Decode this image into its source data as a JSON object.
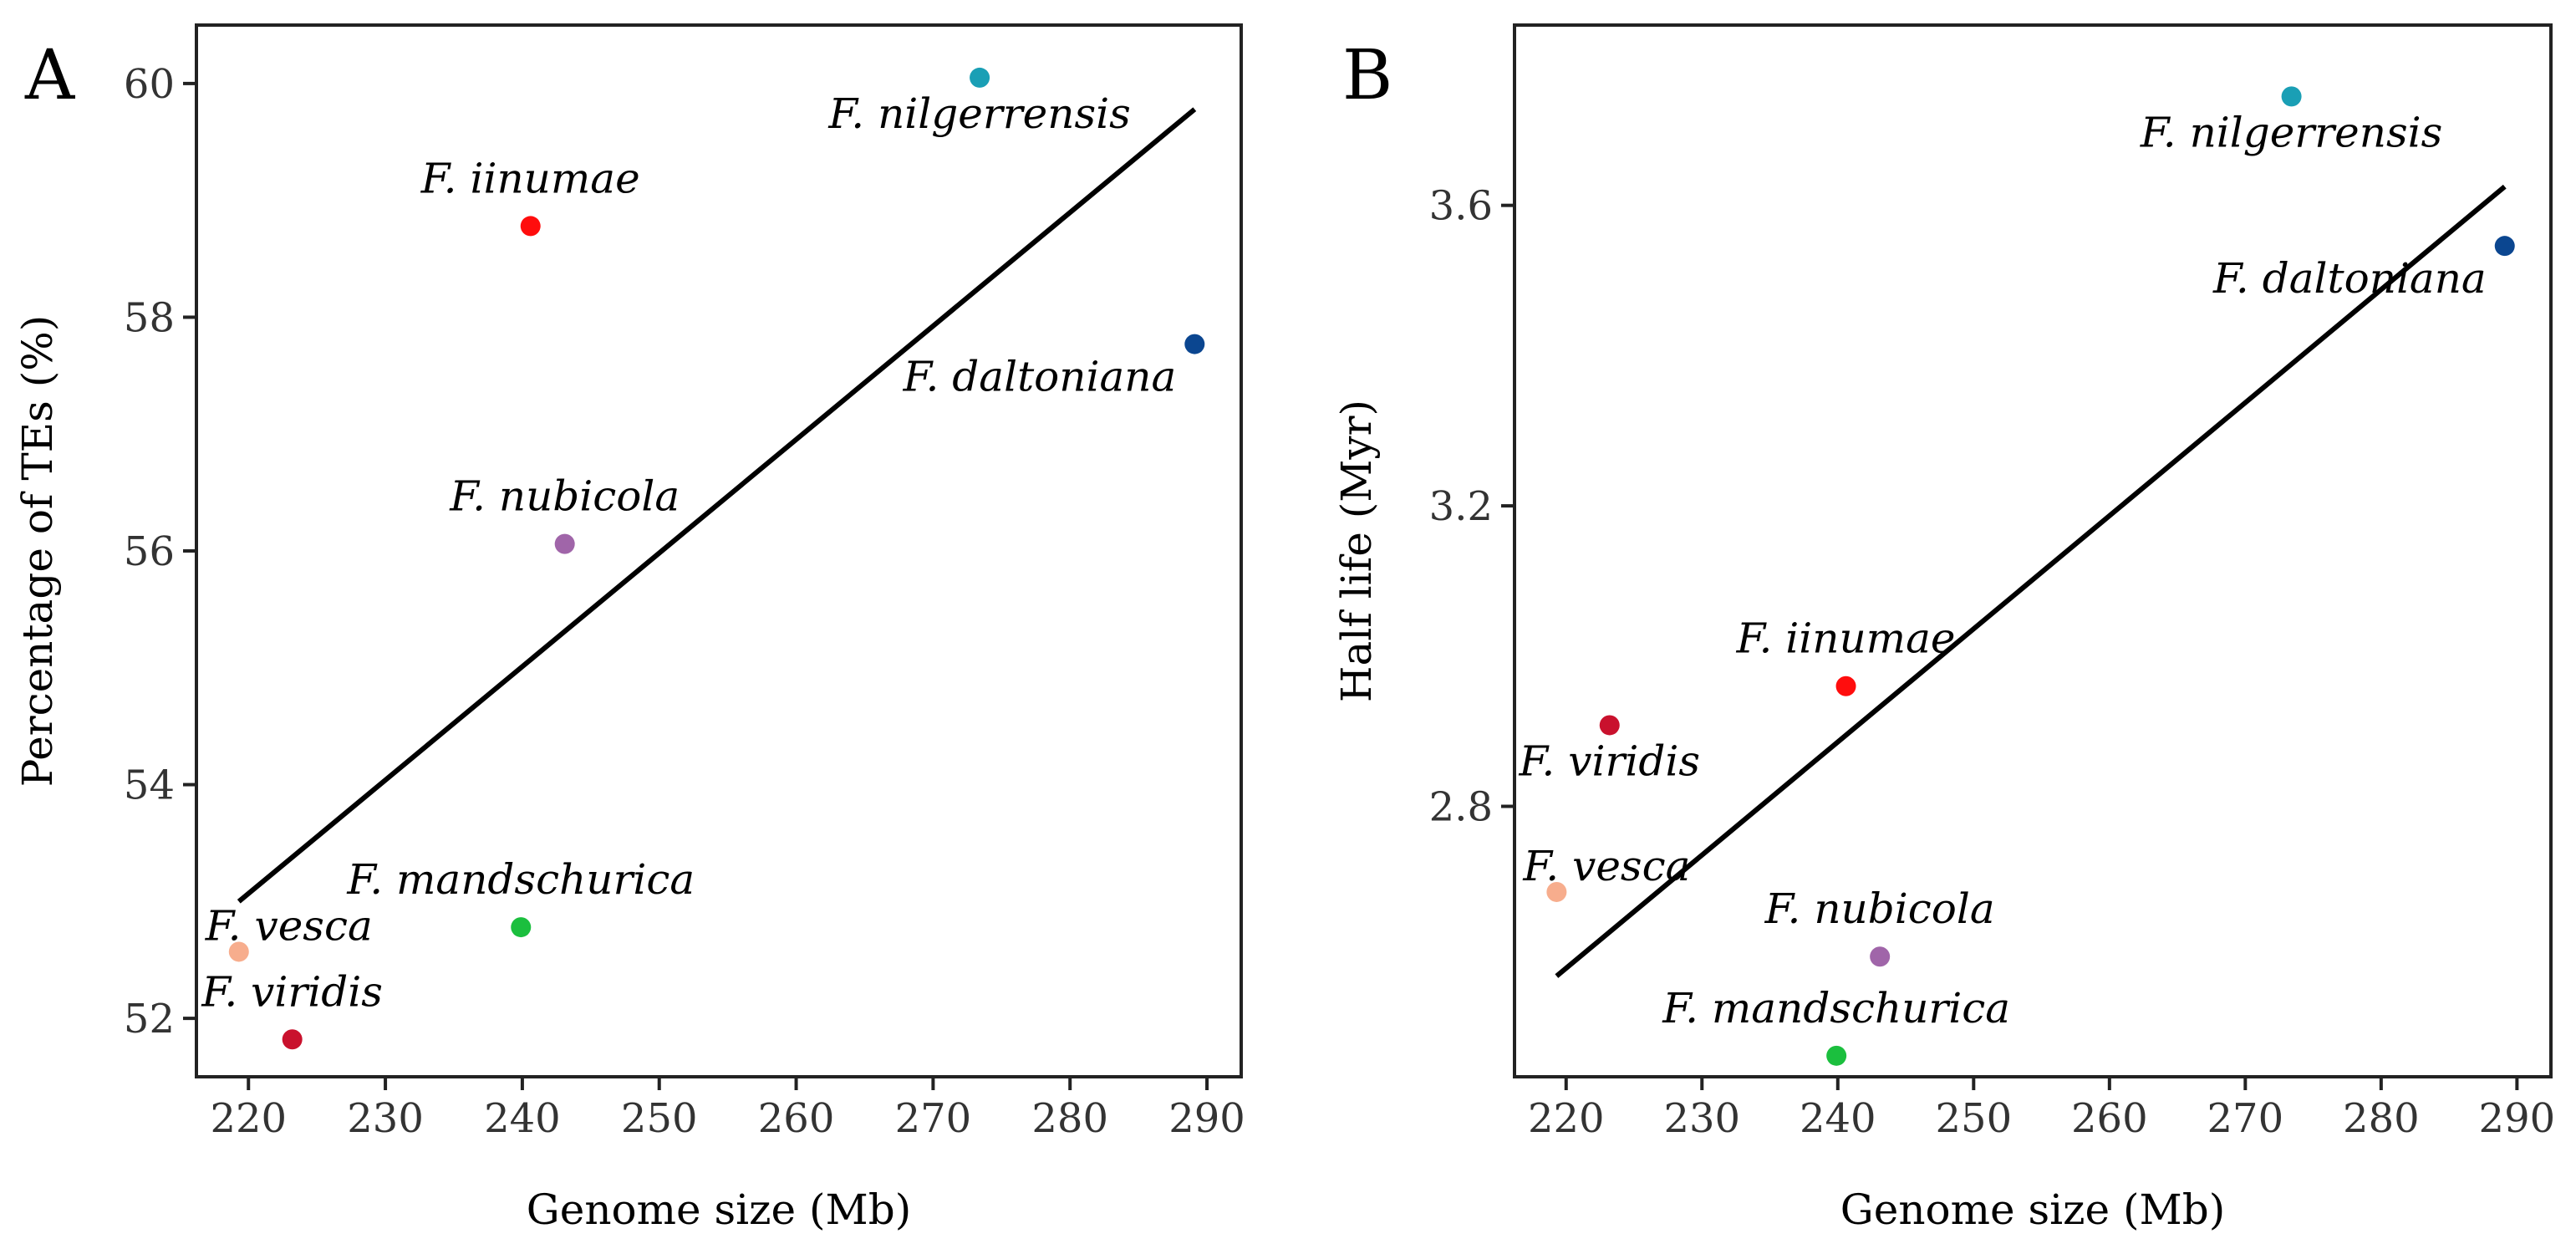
{
  "chart_data": [
    {
      "type": "scatter",
      "panel": "A",
      "xlabel": "Genome size (Mb)",
      "ylabel": "Percentage of TEs (%)",
      "xlim": [
        216.2,
        292.5
      ],
      "ylim": [
        51.5,
        60.5
      ],
      "xticks": [
        220,
        230,
        240,
        250,
        260,
        270,
        280,
        290
      ],
      "yticks": [
        52,
        54,
        56,
        58,
        60
      ],
      "xtick_labels": [
        "220",
        "230",
        "240",
        "250",
        "260",
        "270",
        "280",
        "290"
      ],
      "ytick_labels": [
        "52",
        "54",
        "56",
        "58",
        "60"
      ],
      "points": [
        {
          "label": "F. nilgerrensis",
          "x": 273.4,
          "y": 60.05,
          "color": "#1a9fb5",
          "label_pos": "below"
        },
        {
          "label": "F. iinumae",
          "x": 240.6,
          "y": 58.78,
          "color": "#ff0d0d",
          "label_pos": "above"
        },
        {
          "label": "F. daltoniana",
          "x": 289.1,
          "y": 57.77,
          "color": "#0b4690",
          "label_pos": "below-left"
        },
        {
          "label": "F. nubicola",
          "x": 243.1,
          "y": 56.06,
          "color": "#a065a9",
          "label_pos": "above"
        },
        {
          "label": "F. mandschurica",
          "x": 239.9,
          "y": 52.78,
          "color": "#1bbf3e",
          "label_pos": "above"
        },
        {
          "label": "F. vesca",
          "x": 219.3,
          "y": 52.57,
          "color": "#f7ad8d",
          "label_pos": "above-right"
        },
        {
          "label": "F. viridis",
          "x": 223.2,
          "y": 51.82,
          "color": "#c9112d",
          "label_pos": "above"
        }
      ],
      "fit_line": {
        "x": [
          219.3,
          289.1
        ],
        "y": [
          53.0,
          59.78
        ]
      }
    },
    {
      "type": "scatter",
      "panel": "B",
      "xlabel": "Genome size (Mb)",
      "ylabel": "Half life (Myr)",
      "xlim": [
        216.2,
        292.5
      ],
      "ylim": [
        2.44,
        3.84
      ],
      "xticks": [
        220,
        230,
        240,
        250,
        260,
        270,
        280,
        290
      ],
      "yticks": [
        2.8,
        3.2,
        3.6
      ],
      "xtick_labels": [
        "220",
        "230",
        "240",
        "250",
        "260",
        "270",
        "280",
        "290"
      ],
      "ytick_labels": [
        "2.8",
        "3.2",
        "3.6"
      ],
      "points": [
        {
          "label": "F. nilgerrensis",
          "x": 273.4,
          "y": 3.745,
          "color": "#1a9fb5",
          "label_pos": "below"
        },
        {
          "label": "F. daltoniana",
          "x": 289.1,
          "y": 3.546,
          "color": "#0b4690",
          "label_pos": "below-left"
        },
        {
          "label": "F. iinumae",
          "x": 240.6,
          "y": 2.96,
          "color": "#ff0d0d",
          "label_pos": "above"
        },
        {
          "label": "F. viridis",
          "x": 223.2,
          "y": 2.908,
          "color": "#c9112d",
          "label_pos": "below"
        },
        {
          "label": "F. vesca",
          "x": 219.3,
          "y": 2.686,
          "color": "#f7ad8d",
          "label_pos": "above-right"
        },
        {
          "label": "F. nubicola",
          "x": 243.1,
          "y": 2.6,
          "color": "#a065a9",
          "label_pos": "above"
        },
        {
          "label": "F. mandschurica",
          "x": 239.9,
          "y": 2.468,
          "color": "#1bbf3e",
          "label_pos": "above"
        }
      ],
      "fit_line": {
        "x": [
          219.3,
          289.1
        ],
        "y": [
          2.574,
          3.625
        ]
      }
    }
  ]
}
